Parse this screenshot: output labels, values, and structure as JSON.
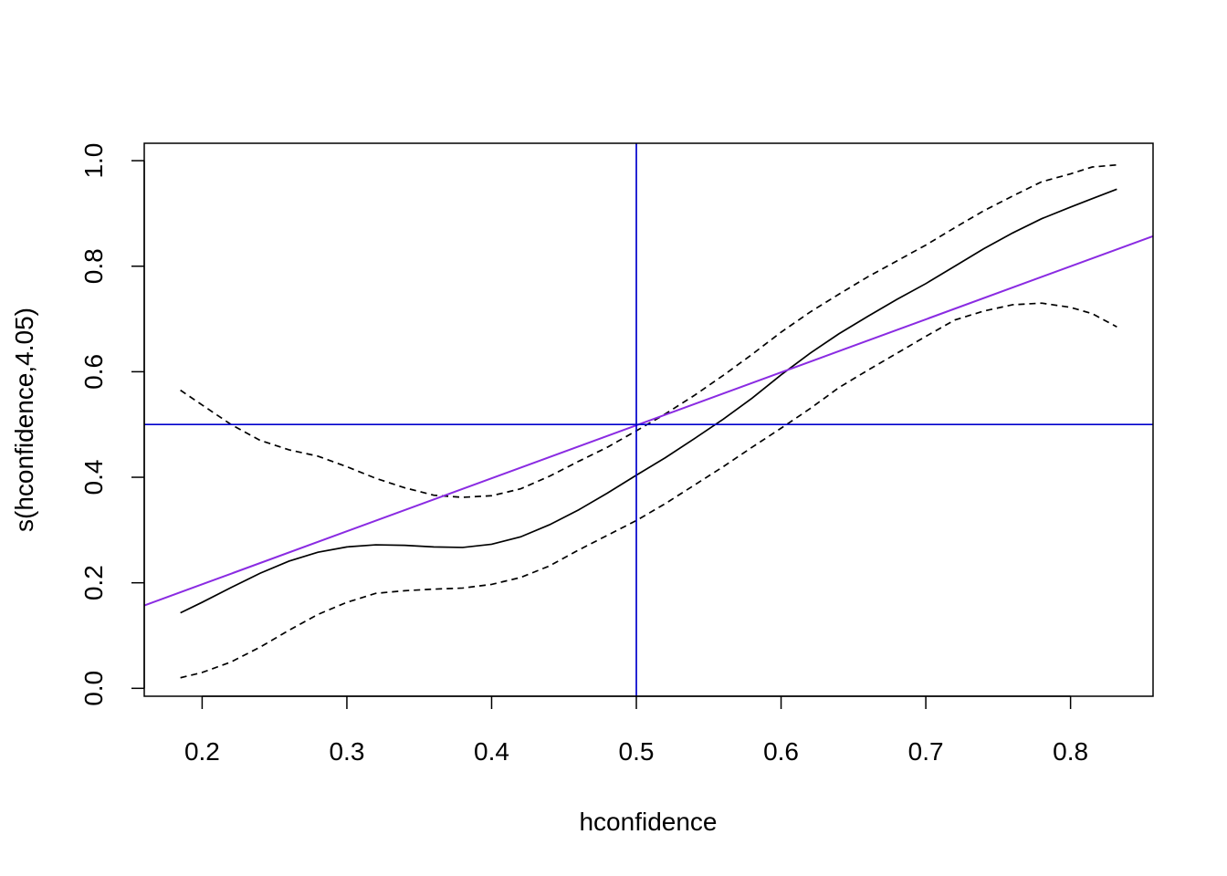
{
  "chart_data": {
    "type": "line",
    "title": "",
    "xlabel": "hconfidence",
    "ylabel": "s(hconfidence,4.05)",
    "xlim": [
      0.16,
      0.857
    ],
    "ylim": [
      -0.015,
      1.033
    ],
    "x_ticks": [
      "0.2",
      "0.3",
      "0.4",
      "0.5",
      "0.6",
      "0.7",
      "0.8"
    ],
    "y_ticks": [
      "0.0",
      "0.2",
      "0.4",
      "0.6",
      "0.8",
      "1.0"
    ],
    "grid": false,
    "legend": "none",
    "series": [
      {
        "style": "solid",
        "color": "#000000",
        "points": [
          [
            0.185,
            0.143
          ],
          [
            0.2,
            0.163
          ],
          [
            0.22,
            0.191
          ],
          [
            0.24,
            0.218
          ],
          [
            0.26,
            0.241
          ],
          [
            0.28,
            0.258
          ],
          [
            0.3,
            0.268
          ],
          [
            0.32,
            0.272
          ],
          [
            0.34,
            0.271
          ],
          [
            0.36,
            0.268
          ],
          [
            0.38,
            0.267
          ],
          [
            0.4,
            0.273
          ],
          [
            0.42,
            0.287
          ],
          [
            0.44,
            0.31
          ],
          [
            0.46,
            0.338
          ],
          [
            0.48,
            0.37
          ],
          [
            0.5,
            0.404
          ],
          [
            0.52,
            0.437
          ],
          [
            0.54,
            0.473
          ],
          [
            0.56,
            0.51
          ],
          [
            0.58,
            0.55
          ],
          [
            0.6,
            0.594
          ],
          [
            0.62,
            0.635
          ],
          [
            0.64,
            0.672
          ],
          [
            0.66,
            0.705
          ],
          [
            0.68,
            0.737
          ],
          [
            0.7,
            0.767
          ],
          [
            0.72,
            0.8
          ],
          [
            0.74,
            0.833
          ],
          [
            0.76,
            0.863
          ],
          [
            0.78,
            0.89
          ],
          [
            0.8,
            0.912
          ],
          [
            0.815,
            0.928
          ],
          [
            0.832,
            0.946
          ]
        ]
      },
      {
        "style": "dashed",
        "color": "#000000",
        "points": [
          [
            0.185,
            0.565
          ],
          [
            0.2,
            0.537
          ],
          [
            0.22,
            0.5
          ],
          [
            0.24,
            0.47
          ],
          [
            0.26,
            0.452
          ],
          [
            0.28,
            0.44
          ],
          [
            0.3,
            0.42
          ],
          [
            0.32,
            0.398
          ],
          [
            0.34,
            0.38
          ],
          [
            0.36,
            0.366
          ],
          [
            0.38,
            0.362
          ],
          [
            0.4,
            0.365
          ],
          [
            0.42,
            0.378
          ],
          [
            0.44,
            0.402
          ],
          [
            0.46,
            0.43
          ],
          [
            0.48,
            0.457
          ],
          [
            0.5,
            0.488
          ],
          [
            0.52,
            0.52
          ],
          [
            0.54,
            0.555
          ],
          [
            0.56,
            0.593
          ],
          [
            0.58,
            0.633
          ],
          [
            0.6,
            0.675
          ],
          [
            0.62,
            0.713
          ],
          [
            0.64,
            0.747
          ],
          [
            0.66,
            0.78
          ],
          [
            0.68,
            0.81
          ],
          [
            0.7,
            0.84
          ],
          [
            0.72,
            0.873
          ],
          [
            0.74,
            0.905
          ],
          [
            0.76,
            0.933
          ],
          [
            0.78,
            0.96
          ],
          [
            0.8,
            0.975
          ],
          [
            0.815,
            0.988
          ],
          [
            0.832,
            0.992
          ]
        ]
      },
      {
        "style": "dashed",
        "color": "#000000",
        "points": [
          [
            0.185,
            0.02
          ],
          [
            0.2,
            0.03
          ],
          [
            0.22,
            0.05
          ],
          [
            0.24,
            0.078
          ],
          [
            0.26,
            0.11
          ],
          [
            0.28,
            0.14
          ],
          [
            0.3,
            0.163
          ],
          [
            0.32,
            0.18
          ],
          [
            0.34,
            0.185
          ],
          [
            0.36,
            0.188
          ],
          [
            0.38,
            0.19
          ],
          [
            0.4,
            0.197
          ],
          [
            0.42,
            0.21
          ],
          [
            0.44,
            0.232
          ],
          [
            0.46,
            0.262
          ],
          [
            0.48,
            0.29
          ],
          [
            0.5,
            0.318
          ],
          [
            0.52,
            0.35
          ],
          [
            0.54,
            0.385
          ],
          [
            0.56,
            0.42
          ],
          [
            0.58,
            0.457
          ],
          [
            0.6,
            0.493
          ],
          [
            0.62,
            0.53
          ],
          [
            0.64,
            0.57
          ],
          [
            0.66,
            0.603
          ],
          [
            0.68,
            0.635
          ],
          [
            0.7,
            0.667
          ],
          [
            0.72,
            0.698
          ],
          [
            0.74,
            0.715
          ],
          [
            0.76,
            0.727
          ],
          [
            0.78,
            0.73
          ],
          [
            0.8,
            0.722
          ],
          [
            0.815,
            0.71
          ],
          [
            0.832,
            0.685
          ]
        ]
      },
      {
        "style": "solid",
        "color": "#8a2be2",
        "points": [
          [
            0.16,
            0.157
          ],
          [
            0.857,
            0.857
          ]
        ]
      }
    ],
    "reference_lines": {
      "color": "#0000cc",
      "vertical_x": 0.5,
      "horizontal_y": 0.5
    }
  }
}
